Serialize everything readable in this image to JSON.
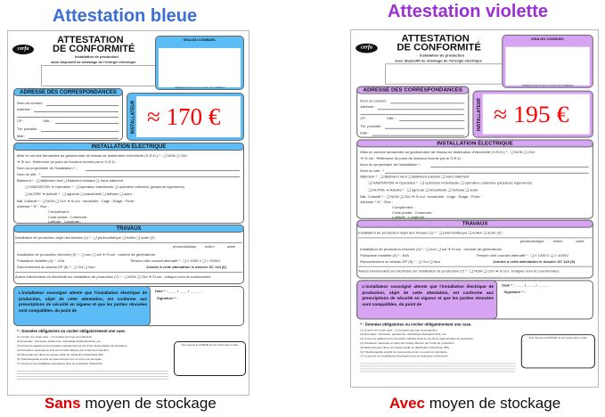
{
  "docs": [
    {
      "heading": "Attestation bleue",
      "heading_color": "#3b6fd6",
      "accent": "#5bbcf6",
      "price": "≈ 170 €",
      "subtitle": "sans dispositif de stockage de l'énergie électrique",
      "caption_bold": "Sans",
      "caption_rest": " moyen de stockage"
    },
    {
      "heading": "Attestation violette",
      "heading_color": "#9b2fd0",
      "accent": "#d7a4f4",
      "price": "≈ 195 €",
      "subtitle": "avec dispositif de stockage de l'énergie électrique",
      "caption_bold": "Avec",
      "caption_rest": " moyen de stockage"
    }
  ],
  "form": {
    "logo": "cerfa",
    "title1": "ATTESTATION",
    "title2": "DE CONFORMITÉ",
    "title3": "Installation de production",
    "visa": "VISA DU CONSUEL",
    "visa_sub": "(Comité National pour la Sécurité des Usagers de l'Electricité) organisme agréé par le Ministère de l'Industrie",
    "visa_foot": "(obligatoire pour la mise en service de l'installation)",
    "adresse": "ADRESSE DES CORRESPONDANCES",
    "contact": "Nom du contact :",
    "adr": "Adresse :",
    "cp": "CP :",
    "ville": "Ville :",
    "tel": "Tél. portable :",
    "mail": "Mail :",
    "installateur": "INSTALLATEUR",
    "install": "INSTALLATION ÉLECTRIQUE",
    "r1": "Mise en service demandée au gestionnaire de réseau de distribution d'électricité (G.R.D.) * : ❑ NON  ❑ OUI",
    "r2": "➔ Si oui : Référence du point de livraison fournie par le G.R.D. :",
    "r3": "Nom du propriétaire de l'installation * :",
    "r4": "Nom du site : *",
    "r5": "Bâtiment * : ❑ Bâtiment neuf     ❑ Bâtiment existant     ❑ Sans bâtiment",
    "r6": "❑ HABITATION ➔ Opération * : ❑ opération individuelle  ❑ opération collective (plusieurs logements)",
    "r7": "❑ AUTRE       ➔ Activité * : ❑ agricole  ❑ industrielle  ❑ tertiaire  ❑ autre :",
    "r8": "Bât. Collectif * : ❑ NON  ❑ OUI ➔ Si oui : Immeuble :            Cage :            Etage :         Porte :",
    "r9": "Adresse *    N° :          Rue :",
    "r10": "Complément :",
    "r11": "Code postal :              Commune :",
    "r12": "Latitude :                                     Longitude :",
    "travaux": "TRAVAUX",
    "w1": "Installation de production objet des travaux (1) * : ❑ photovoltaïque  ❑ éolien   ❑ autre (2) :",
    "w_cols": [
      "photovoltaïque",
      "éolien",
      "autre"
    ],
    "w2": "Installation de production rénovée (3) * : ❑ non  ❑ oui ➔ Si oui : nombre de générateurs",
    "w3": "Puissance installée (4) * :                        kVA",
    "w3b": "Tension côté courant alternatif * : ❑ ≤ 1000 V  ❑ > 1000V",
    "w4": "Raccordement au réseau DP (5) * : ❑ Oui  ❑ Non",
    "w4b": "Joindre à cette attestation le dossier SC 144 (6)",
    "w5": "Autres intervenants en électricité sur installation de production (7) * : ❑ NON  ❑ OUI     ➔ Si oui : Indiquer nom et coordonnées",
    "stmt": "L'installateur soussigné atteste que l'installation électrique de production, objet de cette attestation, est conforme aux prescriptions de sécurité en vigueur et que les parties rénovées sont compatibles, du point de",
    "date": "Date * : ____ / ____ / ______",
    "signature": "Signature * :",
    "oblig": "* : Données obligatoires ou cocher obligatoirement une case.",
    "notes": [
      "(1) Cocher une seule case : 1 formulaire par type de production.",
      "(2) Exemples : biomasse, géothermie, hydraulique/hydroélectricité, etc.",
      "(3) Concerne également la rénovation partielle dans le cas d'une augmentation de puissance.",
      "(4) Puissance maximale en kVa (voir Arrêté) délivrée par l'unité de production.",
      "(5) Raccordement direct au réseau public de distribution d'électricité (DP).",
      "(6) Téléchargeable à partir de www.consuel.com ou envoi sur demande.",
      "(7) Concerne les installations électriques fixes de production d'électricité."
    ],
    "consuel_box": "Zone réservée au CONSUEL Ne rien inscrire dans ce cadre"
  }
}
